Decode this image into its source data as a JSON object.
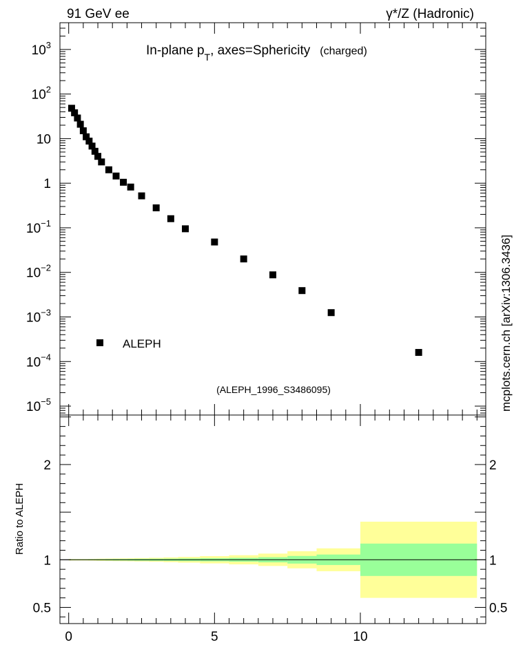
{
  "header": {
    "left_label": "91 GeV ee",
    "right_label": "γ*/Z (Hadronic)"
  },
  "side_label": "mcplots.cern.ch [arXiv:1306.3436]",
  "chart_data": [
    {
      "type": "scatter",
      "title_main": "In-plane p",
      "title_sub": "T",
      "title_rest": ", axes=Sphericity",
      "title_note": "(charged)",
      "analysis_label": "(ALEPH_1996_S3486095)",
      "yscale": "log",
      "xlim": [
        -0.3,
        14.3
      ],
      "ylim_log10": [
        -5.2,
        3.6
      ],
      "ytick_labels": [
        {
          "exp": 3,
          "base": "10",
          "sup": "3"
        },
        {
          "exp": 2,
          "base": "10",
          "sup": "2"
        },
        {
          "exp": 1,
          "base": "10",
          "sup": ""
        },
        {
          "exp": 0,
          "base": "1",
          "sup": ""
        },
        {
          "exp": -1,
          "base": "10",
          "sup": "−1"
        },
        {
          "exp": -2,
          "base": "10",
          "sup": "−2"
        },
        {
          "exp": -3,
          "base": "10",
          "sup": "−3"
        },
        {
          "exp": -4,
          "base": "10",
          "sup": "−4"
        },
        {
          "exp": -5,
          "base": "10",
          "sup": "−5"
        }
      ],
      "legend": {
        "label": "ALEPH",
        "position": "lower-left"
      },
      "series": [
        {
          "name": "ALEPH",
          "x": [
            0.1,
            0.2,
            0.3,
            0.4,
            0.5,
            0.6,
            0.7,
            0.8,
            0.9,
            1.0,
            1.125,
            1.375,
            1.625,
            1.875,
            2.125,
            2.5,
            3.0,
            3.5,
            4.0,
            5.0,
            6.0,
            7.0,
            8.0,
            9.0,
            12.0
          ],
          "y": [
            48.0,
            38.0,
            29.0,
            21.0,
            15.0,
            11.0,
            8.8,
            6.8,
            5.2,
            4.0,
            3.0,
            2.0,
            1.45,
            1.05,
            0.82,
            0.52,
            0.28,
            0.16,
            0.095,
            0.048,
            0.02,
            0.0088,
            0.0039,
            0.00125,
            0.00016
          ]
        }
      ]
    },
    {
      "type": "band",
      "ylabel": "Ratio to ALEPH",
      "xlim": [
        -0.3,
        14.3
      ],
      "ylim": [
        0.33,
        2.52
      ],
      "yticks": [
        0.5,
        1,
        1.5,
        2,
        2.5
      ],
      "ytick_labels": [
        "0.5",
        "1",
        "2"
      ],
      "ytick_label_values": [
        0.5,
        1,
        2
      ],
      "xtick_labels": [
        "0",
        "5",
        "10"
      ],
      "xtick_label_values": [
        0,
        5,
        10
      ],
      "reference_line": 1,
      "bins": [
        0,
        0.15,
        0.25,
        0.35,
        0.45,
        0.55,
        0.65,
        0.75,
        0.85,
        0.95,
        1.05,
        1.25,
        1.5,
        1.75,
        2.0,
        2.25,
        2.75,
        3.25,
        3.75,
        4.5,
        5.5,
        6.5,
        7.5,
        8.5,
        10.0,
        14.0
      ],
      "green_half_width": [
        0.004,
        0.004,
        0.004,
        0.004,
        0.004,
        0.004,
        0.005,
        0.005,
        0.005,
        0.006,
        0.006,
        0.007,
        0.008,
        0.008,
        0.009,
        0.01,
        0.011,
        0.012,
        0.014,
        0.016,
        0.02,
        0.027,
        0.04,
        0.055,
        0.17
      ],
      "yellow_half_width": [
        0.008,
        0.008,
        0.008,
        0.008,
        0.008,
        0.008,
        0.009,
        0.009,
        0.01,
        0.011,
        0.012,
        0.013,
        0.014,
        0.015,
        0.016,
        0.018,
        0.021,
        0.025,
        0.03,
        0.038,
        0.048,
        0.065,
        0.09,
        0.12,
        0.4
      ],
      "colors": {
        "green": "#99ff99",
        "yellow": "#ffff99"
      }
    }
  ]
}
